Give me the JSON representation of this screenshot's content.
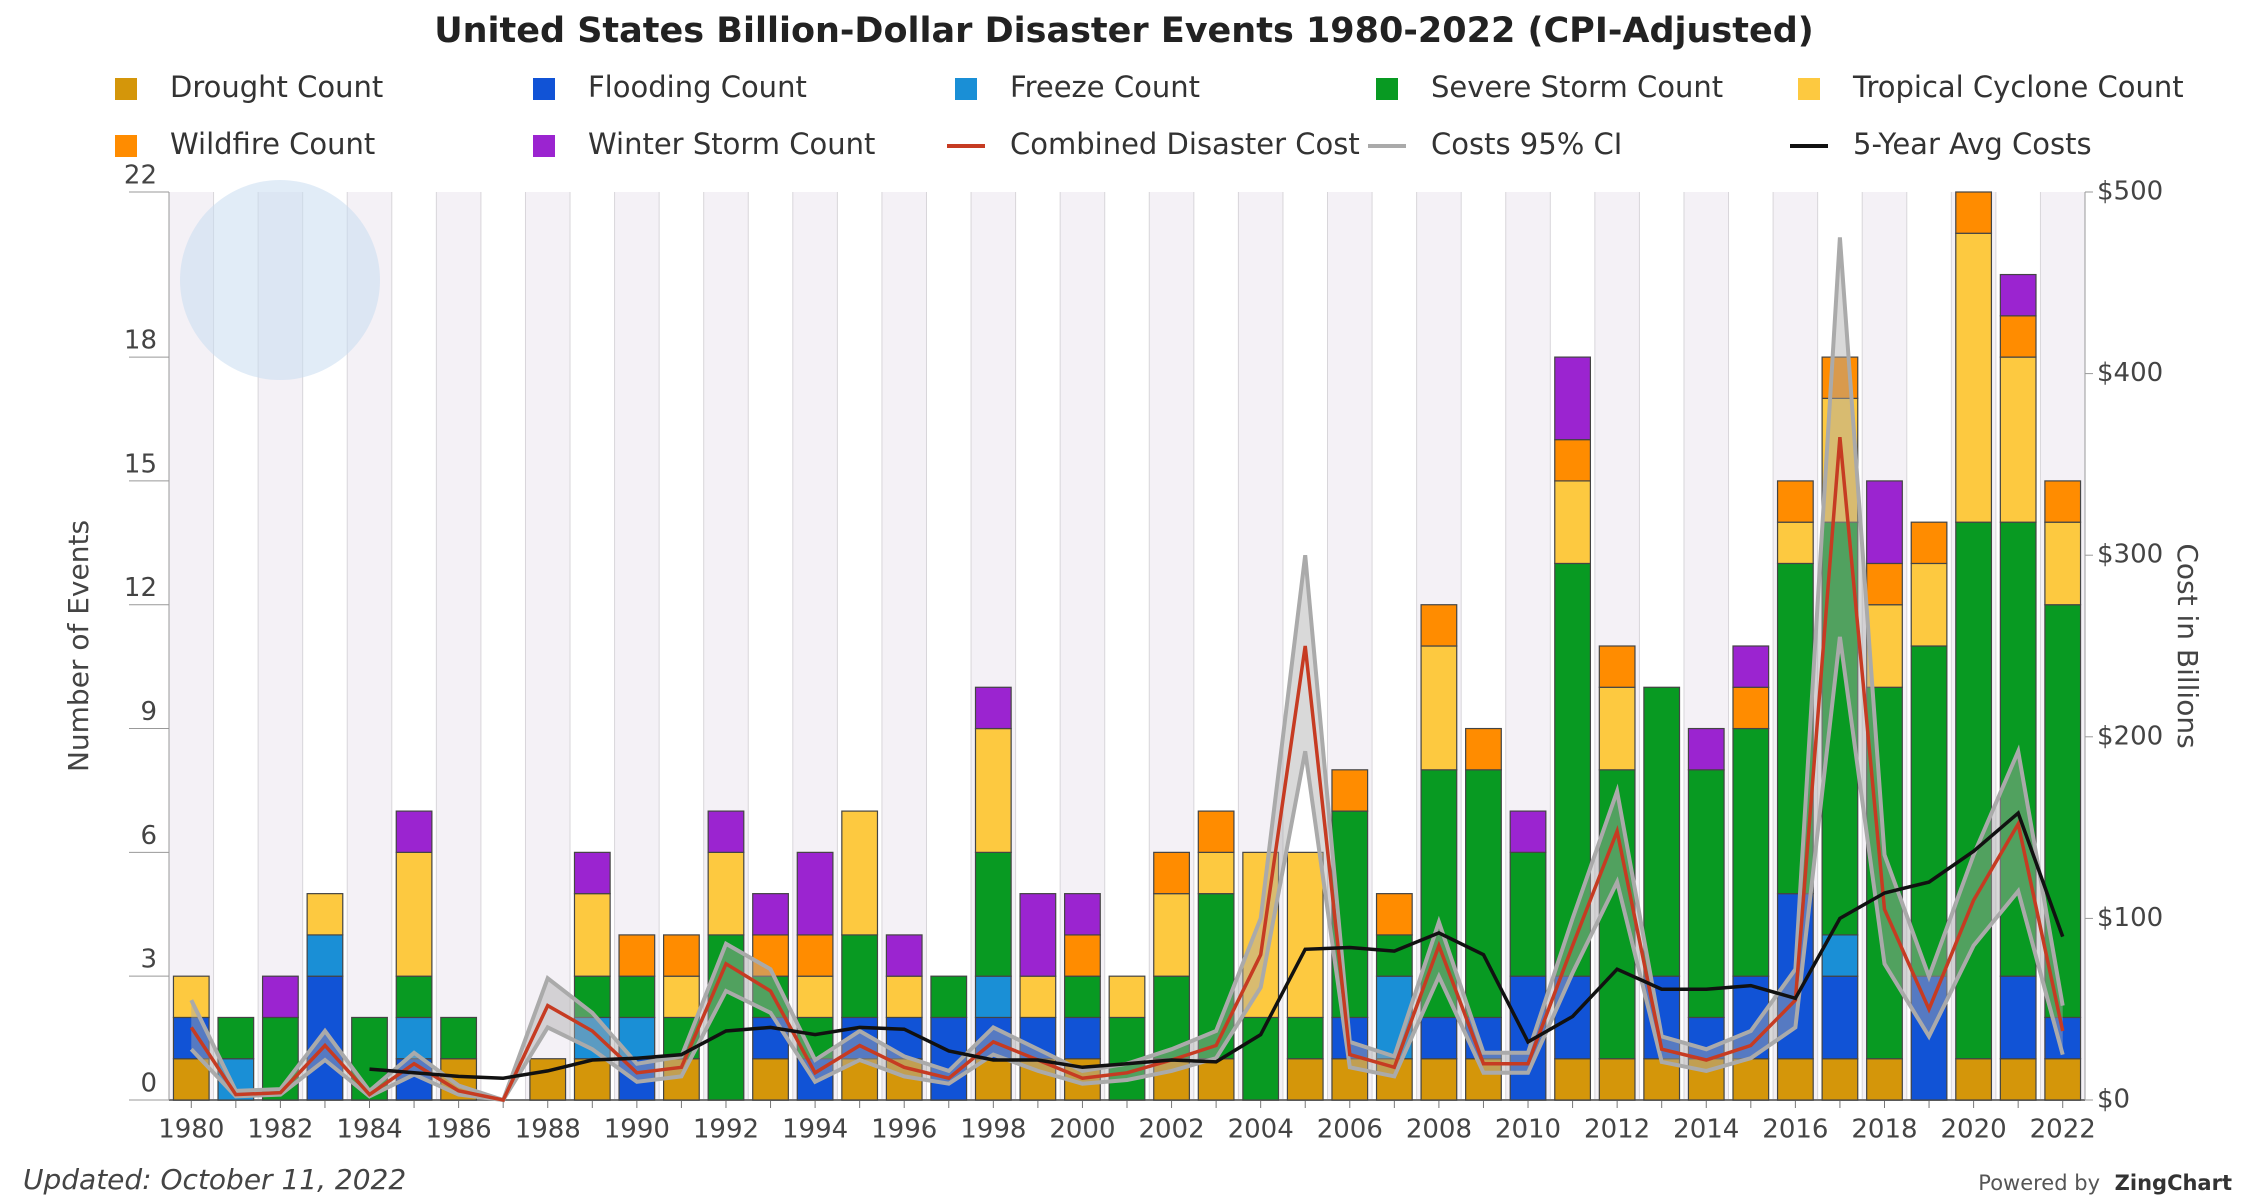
{
  "chart_data": {
    "type": "stacked-bar",
    "title": "United States Billion-Dollar Disaster Events 1980-2022 (CPI-Adjusted)",
    "y_label": "Number of Events",
    "y2_label": "Cost in Billions",
    "updated": "Updated: October 11, 2022",
    "powered_by": "Powered by",
    "brand": "ZingChart",
    "categories": [
      "1980",
      null,
      "1982",
      null,
      "1984",
      null,
      "1986",
      null,
      "1988",
      null,
      "1990",
      null,
      "1992",
      null,
      "1994",
      null,
      "1996",
      null,
      "1998",
      null,
      "2000",
      null,
      "2002",
      null,
      "2004",
      null,
      "2006",
      null,
      "2008",
      null,
      "2010",
      null,
      "2012",
      null,
      "2014",
      null,
      "2016",
      null,
      "2018",
      null,
      "2020",
      null,
      "2022"
    ],
    "ylim": [
      0,
      22
    ],
    "yticks": [
      0,
      3,
      6,
      9,
      12,
      15,
      18,
      22
    ],
    "y2lim": [
      0,
      500
    ],
    "y2ticks": [
      {
        "value": 0,
        "label": "$0"
      },
      {
        "value": 100,
        "label": "$100"
      },
      {
        "value": 200,
        "label": "$200"
      },
      {
        "value": 300,
        "label": "$300"
      },
      {
        "value": 400,
        "label": "$400"
      },
      {
        "value": 500,
        "label": "$500"
      }
    ],
    "series": [
      {
        "name": "Drought Count",
        "color": "#d4960a",
        "values": [
          1,
          0,
          0,
          0,
          0,
          0,
          1,
          0,
          1,
          1,
          0,
          1,
          0,
          1,
          0,
          1,
          1,
          0,
          1,
          1,
          1,
          0,
          1,
          1,
          0,
          1,
          1,
          1,
          1,
          1,
          0,
          1,
          1,
          1,
          1,
          1,
          1,
          1,
          1,
          0,
          1,
          1,
          1
        ]
      },
      {
        "name": "Flooding Count",
        "color": "#1153d6",
        "values": [
          1,
          0,
          0,
          3,
          0,
          1,
          0,
          0,
          0,
          0,
          1,
          0,
          0,
          1,
          1,
          1,
          1,
          2,
          1,
          1,
          1,
          0,
          0,
          0,
          0,
          0,
          1,
          0,
          1,
          1,
          3,
          2,
          0,
          2,
          1,
          2,
          4,
          2,
          0,
          3,
          0,
          2,
          1
        ]
      },
      {
        "name": "Freeze Count",
        "color": "#1a8fd6",
        "values": [
          0,
          1,
          0,
          1,
          0,
          1,
          0,
          0,
          0,
          1,
          1,
          0,
          0,
          0,
          0,
          0,
          0,
          0,
          1,
          0,
          0,
          0,
          0,
          0,
          0,
          0,
          0,
          2,
          0,
          0,
          0,
          0,
          0,
          0,
          0,
          0,
          0,
          1,
          0,
          0,
          0,
          0,
          0
        ]
      },
      {
        "name": "Severe Storm Count",
        "color": "#089a22",
        "values": [
          0,
          1,
          2,
          0,
          2,
          1,
          1,
          0,
          0,
          1,
          1,
          1,
          4,
          1,
          1,
          2,
          0,
          1,
          3,
          0,
          1,
          2,
          2,
          4,
          2,
          1,
          5,
          1,
          6,
          6,
          3,
          10,
          7,
          7,
          6,
          6,
          8,
          10,
          9,
          8,
          13,
          11,
          10
        ]
      },
      {
        "name": "Tropical Cyclone Count",
        "color": "#fdc940",
        "values": [
          1,
          0,
          0,
          1,
          0,
          3,
          0,
          0,
          0,
          2,
          0,
          1,
          2,
          0,
          1,
          3,
          1,
          0,
          3,
          1,
          0,
          1,
          2,
          1,
          4,
          4,
          0,
          0,
          3,
          0,
          0,
          2,
          2,
          0,
          0,
          0,
          1,
          3,
          2,
          2,
          7,
          4,
          2
        ]
      },
      {
        "name": "Wildfire Count",
        "color": "#ff8c00",
        "values": [
          0,
          0,
          0,
          0,
          0,
          0,
          0,
          0,
          0,
          0,
          1,
          1,
          0,
          1,
          1,
          0,
          0,
          0,
          0,
          0,
          1,
          0,
          1,
          1,
          0,
          0,
          1,
          1,
          1,
          1,
          0,
          1,
          1,
          0,
          0,
          1,
          1,
          1,
          1,
          1,
          1,
          1,
          1
        ]
      },
      {
        "name": "Winter Storm Count",
        "color": "#9b24d0",
        "values": [
          0,
          0,
          1,
          0,
          0,
          1,
          0,
          0,
          0,
          1,
          0,
          0,
          1,
          1,
          2,
          0,
          1,
          0,
          1,
          2,
          1,
          0,
          0,
          0,
          0,
          0,
          0,
          0,
          0,
          0,
          1,
          2,
          0,
          0,
          1,
          1,
          0,
          0,
          2,
          0,
          0,
          1,
          0
        ]
      },
      {
        "name": "Combined Disaster Cost",
        "type": "line",
        "axis": "y2",
        "color": "#c63b22",
        "values": [
          40,
          3,
          4,
          30,
          3,
          20,
          5,
          0,
          52,
          38,
          15,
          18,
          75,
          60,
          15,
          30,
          18,
          12,
          32,
          22,
          12,
          15,
          22,
          30,
          80,
          250,
          25,
          18,
          85,
          20,
          20,
          85,
          148,
          28,
          22,
          30,
          55,
          365,
          105,
          50,
          110,
          152,
          38
        ]
      },
      {
        "name": "Costs 95% CI",
        "type": "band",
        "axis": "y2",
        "color": "#aaaaaa",
        "low": [
          28,
          2,
          3,
          22,
          2,
          14,
          3,
          0,
          40,
          28,
          10,
          13,
          60,
          48,
          10,
          22,
          13,
          9,
          25,
          16,
          9,
          11,
          16,
          23,
          62,
          192,
          18,
          13,
          68,
          15,
          15,
          70,
          120,
          21,
          16,
          23,
          40,
          255,
          75,
          35,
          85,
          115,
          25
        ],
        "high": [
          55,
          5,
          6,
          38,
          5,
          26,
          8,
          0,
          67,
          48,
          20,
          24,
          86,
          72,
          22,
          38,
          24,
          16,
          40,
          28,
          16,
          20,
          28,
          38,
          100,
          300,
          32,
          24,
          98,
          26,
          26,
          100,
          170,
          35,
          28,
          38,
          72,
          475,
          135,
          68,
          135,
          192,
          52
        ]
      },
      {
        "name": "5-Year Avg Costs",
        "type": "line",
        "axis": "y2",
        "color": "#111111",
        "values": [
          null,
          null,
          null,
          null,
          17,
          15,
          13,
          12,
          16,
          22,
          23,
          25,
          38,
          40,
          36,
          40,
          39,
          27,
          22,
          22,
          18,
          20,
          22,
          21,
          36,
          83,
          84,
          82,
          92,
          80,
          32,
          46,
          72,
          61,
          61,
          63,
          56,
          100,
          114,
          120,
          137,
          158,
          90
        ]
      }
    ]
  }
}
